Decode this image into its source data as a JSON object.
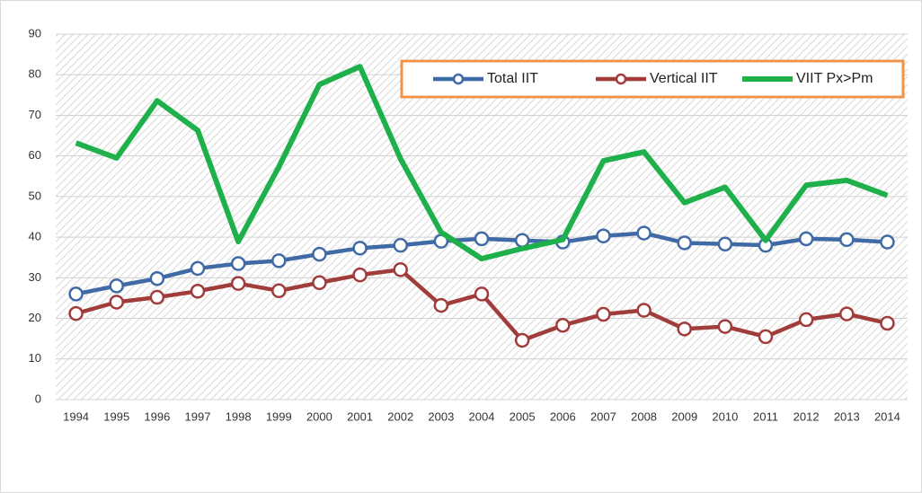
{
  "chart_data": {
    "type": "line",
    "categories": [
      "1994",
      "1995",
      "1996",
      "1997",
      "1998",
      "1999",
      "2000",
      "2001",
      "2002",
      "2003",
      "2004",
      "2005",
      "2006",
      "2007",
      "2008",
      "2009",
      "2010",
      "2011",
      "2012",
      "2013",
      "2014"
    ],
    "series": [
      {
        "name": "Total IIT",
        "color": "#3f6aa6",
        "markers": true,
        "values": [
          26,
          28,
          29.8,
          32.3,
          33.5,
          34.2,
          35.8,
          37.3,
          38,
          39,
          39.6,
          39.2,
          38.8,
          40.3,
          41,
          38.6,
          38.3,
          38,
          39.6,
          39.4,
          38.8
        ]
      },
      {
        "name": "Vertical IIT",
        "color": "#a03c3a",
        "markers": true,
        "values": [
          21.2,
          24,
          25.2,
          26.7,
          28.6,
          26.8,
          28.8,
          30.7,
          32,
          23.2,
          26,
          14.6,
          18.3,
          21,
          22,
          17.4,
          18,
          15.5,
          19.7,
          21.1,
          18.8
        ]
      },
      {
        "name": "VIIT Px>Pm",
        "color": "#1eb04a",
        "markers": false,
        "values": [
          63.2,
          59.5,
          73.6,
          66.3,
          38.9,
          57.3,
          77.6,
          82,
          59.3,
          41.2,
          34.7,
          37.2,
          39.4,
          58.8,
          61,
          48.5,
          52.3,
          39.2,
          52.8,
          54,
          50.3
        ]
      }
    ],
    "ylim": [
      0,
      90
    ],
    "yticks": [
      0,
      10,
      20,
      30,
      40,
      50,
      60,
      70,
      80,
      90
    ],
    "grid": true,
    "legend": "top-right",
    "legend_border": "#f0944a"
  }
}
